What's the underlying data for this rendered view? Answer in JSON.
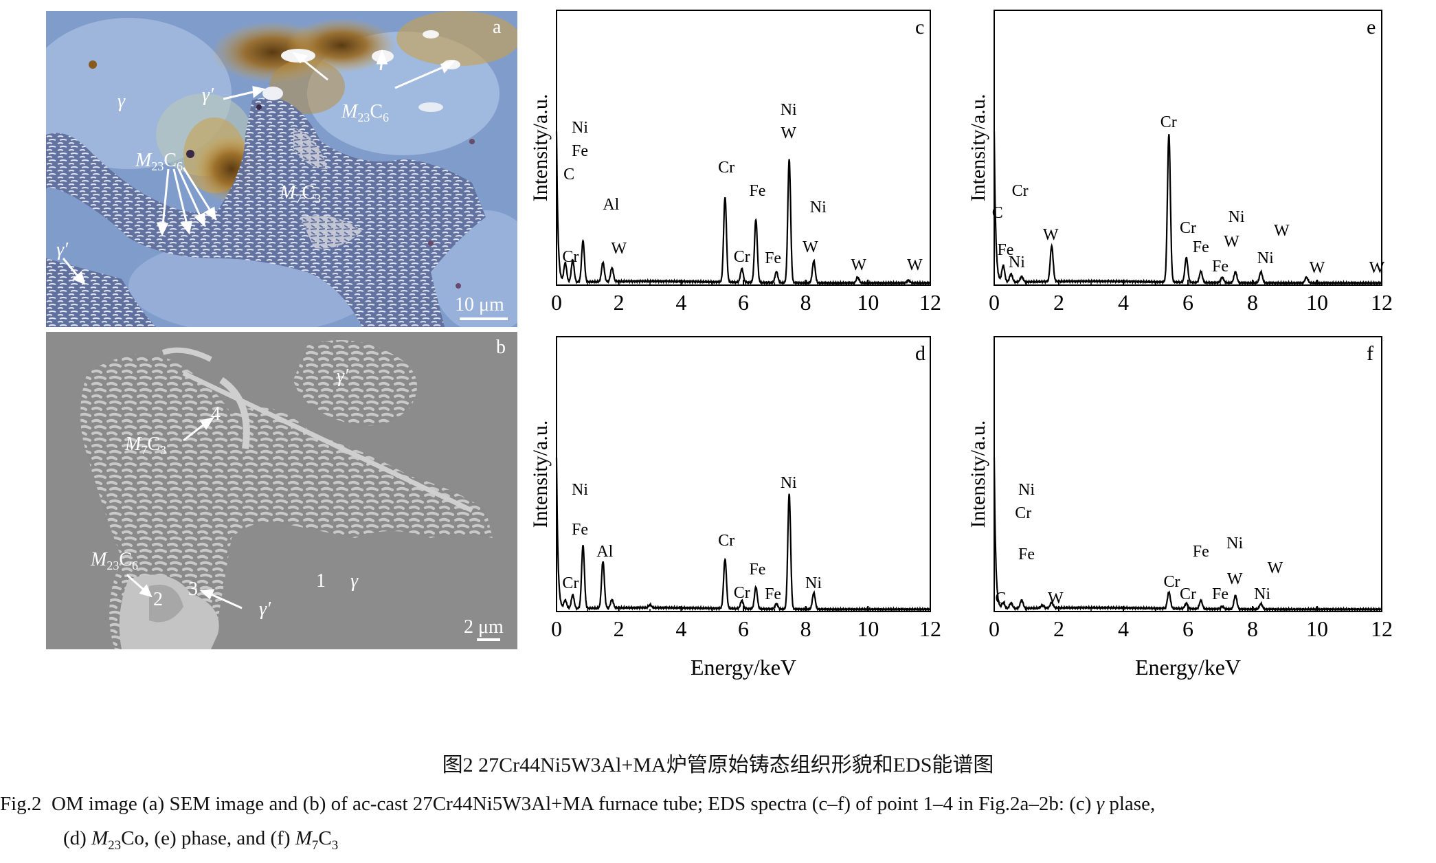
{
  "panels": {
    "a": {
      "letter": "a",
      "gamma": "γ",
      "gamma_prime_1": "γ′",
      "gamma_prime_2": "γ′",
      "m23c6_top": {
        "m": "M",
        "sub": "23",
        "c": "C",
        "sub2": "6"
      },
      "m23c6_left": {
        "m": "M",
        "sub": "23",
        "c": "C",
        "sub2": "6"
      },
      "m7c3": {
        "m": "M",
        "sub": "7",
        "c": "C",
        "sub2": "3"
      },
      "scale": "10 μm"
    },
    "b": {
      "letter": "b",
      "gamma_prime_top": "γ′",
      "gamma_prime_bottom": "γ′",
      "gamma": "γ",
      "m7c3": {
        "m": "M",
        "sub": "7",
        "c": "C",
        "sub2": "3"
      },
      "m23c6": {
        "m": "M",
        "sub": "23",
        "c": "C",
        "sub2": "6"
      },
      "points": [
        "1",
        "2",
        "3",
        "4"
      ],
      "scale": "2 μm"
    }
  },
  "chart_data": [
    {
      "type": "line",
      "panel": "c",
      "ylabel": "Intensity/a.u.",
      "xlabel": "",
      "xlim": [
        0,
        12
      ],
      "xticks": [
        0,
        2,
        4,
        6,
        8,
        10,
        12
      ],
      "peaks": [
        [
          0.28,
          0.07
        ],
        [
          0.52,
          0.08
        ],
        [
          0.85,
          0.15
        ],
        [
          1.49,
          0.07
        ],
        [
          1.78,
          0.05
        ],
        [
          5.41,
          0.31
        ],
        [
          5.95,
          0.05
        ],
        [
          6.4,
          0.23
        ],
        [
          7.06,
          0.04
        ],
        [
          7.47,
          0.45
        ],
        [
          8.26,
          0.08
        ],
        [
          9.67,
          0.02
        ],
        [
          11.3,
          0.01
        ]
      ],
      "labels": [
        {
          "t": "Ni",
          "x": 0.75,
          "y": 0.555
        },
        {
          "t": "Fe",
          "x": 0.75,
          "y": 0.47
        },
        {
          "t": "C",
          "x": 0.4,
          "y": 0.385
        },
        {
          "t": "Al",
          "x": 1.75,
          "y": 0.275
        },
        {
          "t": "Cr",
          "x": 0.45,
          "y": 0.085
        },
        {
          "t": "W",
          "x": 2.0,
          "y": 0.115
        },
        {
          "t": "Cr",
          "x": 5.45,
          "y": 0.41
        },
        {
          "t": "Fe",
          "x": 6.45,
          "y": 0.325
        },
        {
          "t": "Cr",
          "x": 5.95,
          "y": 0.085
        },
        {
          "t": "Fe",
          "x": 6.95,
          "y": 0.08
        },
        {
          "t": "Ni",
          "x": 7.45,
          "y": 0.62
        },
        {
          "t": "W",
          "x": 7.45,
          "y": 0.535
        },
        {
          "t": "Ni",
          "x": 8.4,
          "y": 0.265
        },
        {
          "t": "W",
          "x": 8.15,
          "y": 0.12
        },
        {
          "t": "W",
          "x": 9.7,
          "y": 0.055
        },
        {
          "t": "W",
          "x": 11.5,
          "y": 0.055
        }
      ]
    },
    {
      "type": "line",
      "panel": "d",
      "ylabel": "Intensity/a.u.",
      "xlabel": "Energy/keV",
      "xlim": [
        0,
        12
      ],
      "xticks": [
        0,
        2,
        4,
        6,
        8,
        10,
        12
      ],
      "peaks": [
        [
          0.28,
          0.03
        ],
        [
          0.52,
          0.05
        ],
        [
          0.85,
          0.23
        ],
        [
          1.49,
          0.17
        ],
        [
          1.78,
          0.03
        ],
        [
          3.0,
          0.01
        ],
        [
          5.41,
          0.18
        ],
        [
          5.95,
          0.03
        ],
        [
          6.4,
          0.08
        ],
        [
          7.06,
          0.02
        ],
        [
          7.47,
          0.42
        ],
        [
          8.26,
          0.06
        ]
      ],
      "labels": [
        {
          "t": "Ni",
          "x": 0.75,
          "y": 0.425
        },
        {
          "t": "Fe",
          "x": 0.75,
          "y": 0.28
        },
        {
          "t": "Cr",
          "x": 0.45,
          "y": 0.085
        },
        {
          "t": "Al",
          "x": 1.55,
          "y": 0.2
        },
        {
          "t": "Cr",
          "x": 5.45,
          "y": 0.24
        },
        {
          "t": "Fe",
          "x": 6.45,
          "y": 0.135
        },
        {
          "t": "Cr",
          "x": 5.95,
          "y": 0.05
        },
        {
          "t": "Fe",
          "x": 6.95,
          "y": 0.045
        },
        {
          "t": "Ni",
          "x": 7.45,
          "y": 0.45
        },
        {
          "t": "Ni",
          "x": 8.25,
          "y": 0.085
        }
      ]
    },
    {
      "type": "line",
      "panel": "e",
      "ylabel": "Intensity/a.u.",
      "xlabel": "",
      "xlim": [
        0,
        12
      ],
      "xticks": [
        0,
        2,
        4,
        6,
        8,
        10,
        12
      ],
      "peaks": [
        [
          0.28,
          0.06
        ],
        [
          0.52,
          0.03
        ],
        [
          0.85,
          0.02
        ],
        [
          1.78,
          0.13
        ],
        [
          5.41,
          0.54
        ],
        [
          5.95,
          0.09
        ],
        [
          6.4,
          0.04
        ],
        [
          7.06,
          0.02
        ],
        [
          7.47,
          0.04
        ],
        [
          8.26,
          0.04
        ],
        [
          9.67,
          0.02
        ]
      ],
      "labels": [
        {
          "t": "C",
          "x": 0.1,
          "y": 0.245
        },
        {
          "t": "Cr",
          "x": 0.8,
          "y": 0.325
        },
        {
          "t": "Fe",
          "x": 0.35,
          "y": 0.11
        },
        {
          "t": "Ni",
          "x": 0.7,
          "y": 0.065
        },
        {
          "t": "W",
          "x": 1.75,
          "y": 0.165
        },
        {
          "t": "Cr",
          "x": 5.4,
          "y": 0.575
        },
        {
          "t": "Cr",
          "x": 6.0,
          "y": 0.19
        },
        {
          "t": "Fe",
          "x": 6.4,
          "y": 0.12
        },
        {
          "t": "Fe",
          "x": 7.0,
          "y": 0.05
        },
        {
          "t": "Ni",
          "x": 7.5,
          "y": 0.23
        },
        {
          "t": "W",
          "x": 7.35,
          "y": 0.14
        },
        {
          "t": "W",
          "x": 8.9,
          "y": 0.18
        },
        {
          "t": "Ni",
          "x": 8.4,
          "y": 0.08
        },
        {
          "t": "W",
          "x": 10.0,
          "y": 0.045
        },
        {
          "t": "W",
          "x": 11.85,
          "y": 0.045
        }
      ]
    },
    {
      "type": "line",
      "panel": "f",
      "ylabel": "Intensity/a.u.",
      "xlabel": "Energy/keV",
      "xlim": [
        0,
        12
      ],
      "xticks": [
        0,
        2,
        4,
        6,
        8,
        10,
        12
      ],
      "peaks": [
        [
          0.28,
          0.02
        ],
        [
          0.52,
          0.02
        ],
        [
          0.85,
          0.03
        ],
        [
          1.49,
          0.01
        ],
        [
          1.78,
          0.02
        ],
        [
          5.41,
          0.06
        ],
        [
          5.95,
          0.02
        ],
        [
          6.4,
          0.03
        ],
        [
          7.06,
          0.01
        ],
        [
          7.47,
          0.05
        ],
        [
          8.26,
          0.02
        ]
      ],
      "labels": [
        {
          "t": "Ni",
          "x": 1.0,
          "y": 0.425
        },
        {
          "t": "Cr",
          "x": 0.9,
          "y": 0.34
        },
        {
          "t": "Fe",
          "x": 1.0,
          "y": 0.19
        },
        {
          "t": "C",
          "x": 0.2,
          "y": 0.03
        },
        {
          "t": "W",
          "x": 1.9,
          "y": 0.03
        },
        {
          "t": "Cr",
          "x": 5.5,
          "y": 0.09
        },
        {
          "t": "Cr",
          "x": 6.0,
          "y": 0.045
        },
        {
          "t": "Fe",
          "x": 6.4,
          "y": 0.2
        },
        {
          "t": "Fe",
          "x": 7.0,
          "y": 0.045
        },
        {
          "t": "Ni",
          "x": 7.45,
          "y": 0.23
        },
        {
          "t": "W",
          "x": 7.45,
          "y": 0.1
        },
        {
          "t": "W",
          "x": 8.7,
          "y": 0.14
        },
        {
          "t": "Ni",
          "x": 8.3,
          "y": 0.045
        }
      ]
    }
  ],
  "caption": {
    "cn": "图2  27Cr44Ni5W3Al+MA炉管原始铸态组织形貌和EDS能谱图",
    "en_fig": "Fig.2",
    "en_l1_a": "OM image (a) SEM image and (b) of ac-cast 27Cr44Ni5W3Al+MA furnace tube; EDS spectra (c–f) of point 1–4 in Fig.2a–2b: (c)",
    "en_gamma": "γ",
    "en_l1_b": "plase,",
    "en_l2_a": "(d)",
    "en_l2_m": "M",
    "en_l2_sub": "23",
    "en_l2_b": "Co, (e) phase, and (f)",
    "en_l2_m2": "M",
    "en_l2_sub2": "7",
    "en_l2_c": "C",
    "en_l2_sub3": "3"
  }
}
